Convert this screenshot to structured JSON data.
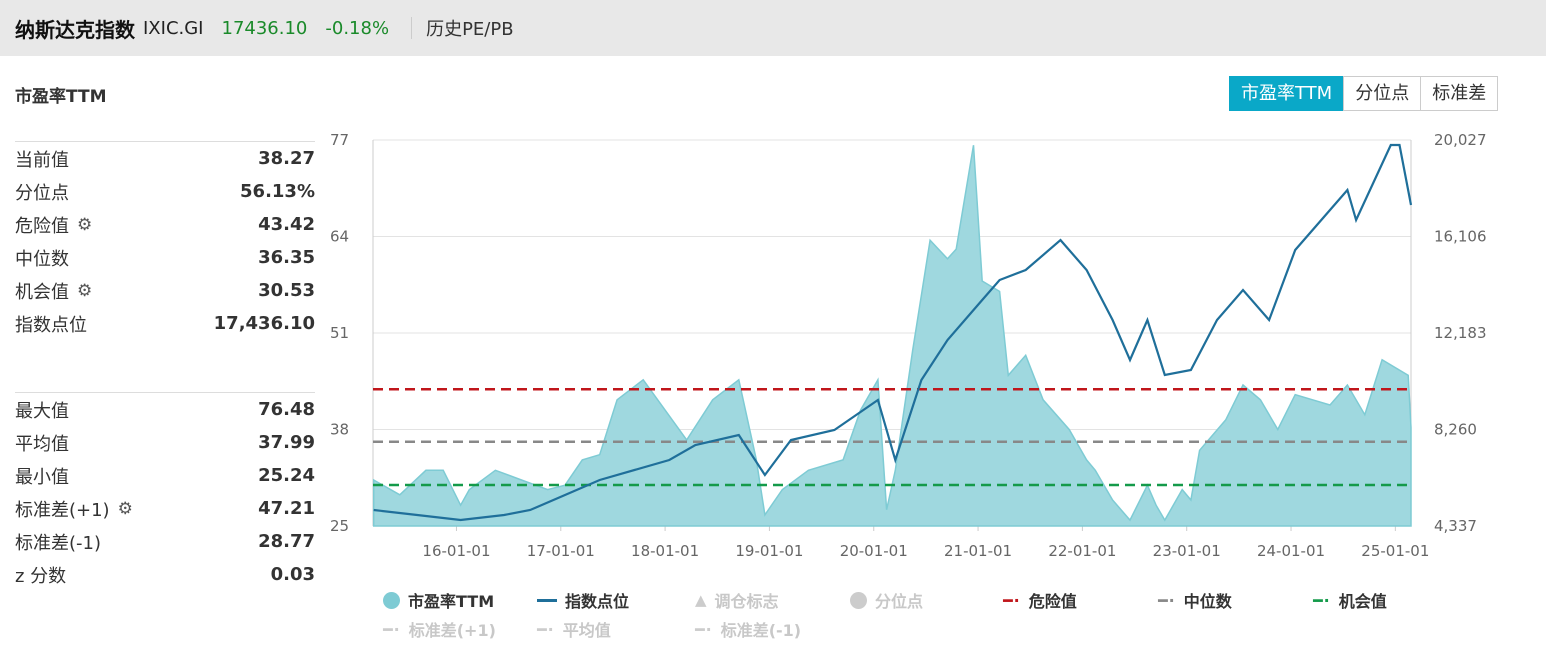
{
  "header": {
    "name": "纳斯达克指数",
    "code": "IXIC.GI",
    "price": "17436.10",
    "change": "-0.18%",
    "link": "历史PE/PB"
  },
  "section_title": "市盈率TTM",
  "tabs": [
    {
      "label": "市盈率TTM",
      "active": true
    },
    {
      "label": "分位点",
      "active": false
    },
    {
      "label": "标准差",
      "active": false
    }
  ],
  "stats_top": [
    {
      "label": "当前值",
      "value": "38.27",
      "gear": false
    },
    {
      "label": "分位点",
      "value": "56.13%",
      "gear": false
    },
    {
      "label": "危险值",
      "value": "43.42",
      "gear": true
    },
    {
      "label": "中位数",
      "value": "36.35",
      "gear": false
    },
    {
      "label": "机会值",
      "value": "30.53",
      "gear": true
    },
    {
      "label": "指数点位",
      "value": "17,436.10",
      "gear": false
    }
  ],
  "stats_bottom": [
    {
      "label": "最大值",
      "value": "76.48",
      "gear": false
    },
    {
      "label": "平均值",
      "value": "37.99",
      "gear": false
    },
    {
      "label": "最小值",
      "value": "25.24",
      "gear": false
    },
    {
      "label": "标准差(+1)",
      "value": "47.21",
      "gear": true
    },
    {
      "label": "标准差(-1)",
      "value": "28.77",
      "gear": false
    },
    {
      "label": "z 分数",
      "value": "0.03",
      "gear": false
    }
  ],
  "gear_icon": "gear-icon",
  "colors": {
    "pe_fill": "#9fd8df",
    "pe_stroke": "#7ecbd4",
    "index": "#1f6f9a",
    "danger": "#c0161b",
    "median": "#888888",
    "opportunity": "#149a4a",
    "active_tab": "#0aa8c8"
  },
  "chart_data": {
    "type": "area+line",
    "left_axis": {
      "ticks": [
        "77",
        "64",
        "51",
        "38",
        "25"
      ],
      "range": [
        25,
        77
      ]
    },
    "right_axis": {
      "ticks": [
        "20,027",
        "16,106",
        "12,183",
        "8,260",
        "4,337"
      ],
      "range": [
        4337,
        20027
      ]
    },
    "x_ticks": [
      "16-01-01",
      "17-01-01",
      "18-01-01",
      "19-01-01",
      "20-01-01",
      "21-01-01",
      "22-01-01",
      "23-01-01",
      "24-01-01",
      "25-01-01"
    ],
    "grid": true,
    "reference_lines": [
      {
        "name": "危险值",
        "value": 43.42
      },
      {
        "name": "中位数",
        "value": 36.35
      },
      {
        "name": "机会值",
        "value": 30.53
      }
    ],
    "series": [
      {
        "name": "市盈率TTM",
        "axis": "left",
        "points": [
          [
            "2015-03",
            31.2
          ],
          [
            "2015-06",
            29.2
          ],
          [
            "2015-09",
            32.5
          ],
          [
            "2015-11",
            32.5
          ],
          [
            "2016-01",
            27.8
          ],
          [
            "2016-02",
            29.9
          ],
          [
            "2016-05",
            32.5
          ],
          [
            "2016-08",
            31.2
          ],
          [
            "2016-11",
            29.9
          ],
          [
            "2017-01",
            30.5
          ],
          [
            "2017-03",
            33.9
          ],
          [
            "2017-05",
            34.6
          ],
          [
            "2017-07",
            42.0
          ],
          [
            "2017-10",
            44.7
          ],
          [
            "2018-03",
            36.6
          ],
          [
            "2018-06",
            42.0
          ],
          [
            "2018-09",
            44.7
          ],
          [
            "2018-11",
            34.0
          ],
          [
            "2018-12",
            26.5
          ],
          [
            "2019-02",
            29.9
          ],
          [
            "2019-05",
            32.5
          ],
          [
            "2019-09",
            33.9
          ],
          [
            "2019-11",
            40.6
          ],
          [
            "2020-01",
            44.7
          ],
          [
            "2020-02",
            27.2
          ],
          [
            "2020-03",
            32.5
          ],
          [
            "2020-05",
            48.7
          ],
          [
            "2020-07",
            63.5
          ],
          [
            "2020-09",
            61.0
          ],
          [
            "2020-10",
            62.3
          ],
          [
            "2020-12",
            76.3
          ],
          [
            "2021-01",
            58.0
          ],
          [
            "2021-03",
            56.6
          ],
          [
            "2021-04",
            45.3
          ],
          [
            "2021-06",
            48.0
          ],
          [
            "2021-08",
            42.0
          ],
          [
            "2021-11",
            38.0
          ],
          [
            "2022-01",
            33.9
          ],
          [
            "2022-02",
            32.5
          ],
          [
            "2022-04",
            28.5
          ],
          [
            "2022-06",
            25.8
          ],
          [
            "2022-08",
            30.5
          ],
          [
            "2022-09",
            27.8
          ],
          [
            "2022-10",
            25.8
          ],
          [
            "2022-12",
            29.9
          ],
          [
            "2023-01",
            28.5
          ],
          [
            "2023-02",
            35.2
          ],
          [
            "2023-05",
            39.3
          ],
          [
            "2023-07",
            44.0
          ],
          [
            "2023-09",
            42.0
          ],
          [
            "2023-11",
            38.0
          ],
          [
            "2024-01",
            42.7
          ],
          [
            "2024-03",
            42.0
          ],
          [
            "2024-05",
            41.3
          ],
          [
            "2024-07",
            44.0
          ],
          [
            "2024-09",
            40.0
          ],
          [
            "2024-11",
            47.4
          ],
          [
            "2025-01",
            46.0
          ],
          [
            "2025-02",
            45.3
          ],
          [
            "2025-02",
            38.27
          ]
        ]
      },
      {
        "name": "指数点位",
        "axis": "right",
        "points": [
          [
            "2015-03",
            4987
          ],
          [
            "2015-08",
            4784
          ],
          [
            "2016-01",
            4581
          ],
          [
            "2016-06",
            4784
          ],
          [
            "2016-09",
            4987
          ],
          [
            "2017-01",
            5597
          ],
          [
            "2017-05",
            6207
          ],
          [
            "2018-01",
            7020
          ],
          [
            "2018-04",
            7630
          ],
          [
            "2018-09",
            8036
          ],
          [
            "2018-12",
            6410
          ],
          [
            "2019-03",
            7833
          ],
          [
            "2019-08",
            8239
          ],
          [
            "2020-01",
            9458
          ],
          [
            "2020-03",
            7020
          ],
          [
            "2020-06",
            10271
          ],
          [
            "2020-09",
            11896
          ],
          [
            "2021-01",
            13522
          ],
          [
            "2021-03",
            14335
          ],
          [
            "2021-06",
            14741
          ],
          [
            "2021-10",
            15960
          ],
          [
            "2022-01",
            14741
          ],
          [
            "2022-04",
            12711
          ],
          [
            "2022-06",
            11083
          ],
          [
            "2022-08",
            12711
          ],
          [
            "2022-10",
            10474
          ],
          [
            "2023-01",
            10677
          ],
          [
            "2023-04",
            12711
          ],
          [
            "2023-07",
            13929
          ],
          [
            "2023-10",
            12711
          ],
          [
            "2024-01",
            15556
          ],
          [
            "2024-05",
            17182
          ],
          [
            "2024-07",
            17995
          ],
          [
            "2024-08",
            16776
          ],
          [
            "2024-12",
            19824
          ],
          [
            "2025-01",
            19824
          ],
          [
            "2025-02",
            17385
          ]
        ]
      }
    ],
    "legend": [
      {
        "label": "市盈率TTM",
        "marker": "circle",
        "active": true
      },
      {
        "label": "指数点位",
        "marker": "line",
        "active": true
      },
      {
        "label": "调仓标志",
        "marker": "triangle",
        "active": false
      },
      {
        "label": "分位点",
        "marker": "circle",
        "active": false
      },
      {
        "label": "危险值",
        "marker": "dash",
        "active": true
      },
      {
        "label": "中位数",
        "marker": "dash",
        "active": true
      },
      {
        "label": "机会值",
        "marker": "dash",
        "active": true
      },
      {
        "label": "标准差(+1)",
        "marker": "dash",
        "active": false
      },
      {
        "label": "平均值",
        "marker": "dash",
        "active": false
      },
      {
        "label": "标准差(-1)",
        "marker": "dash",
        "active": false
      }
    ]
  }
}
